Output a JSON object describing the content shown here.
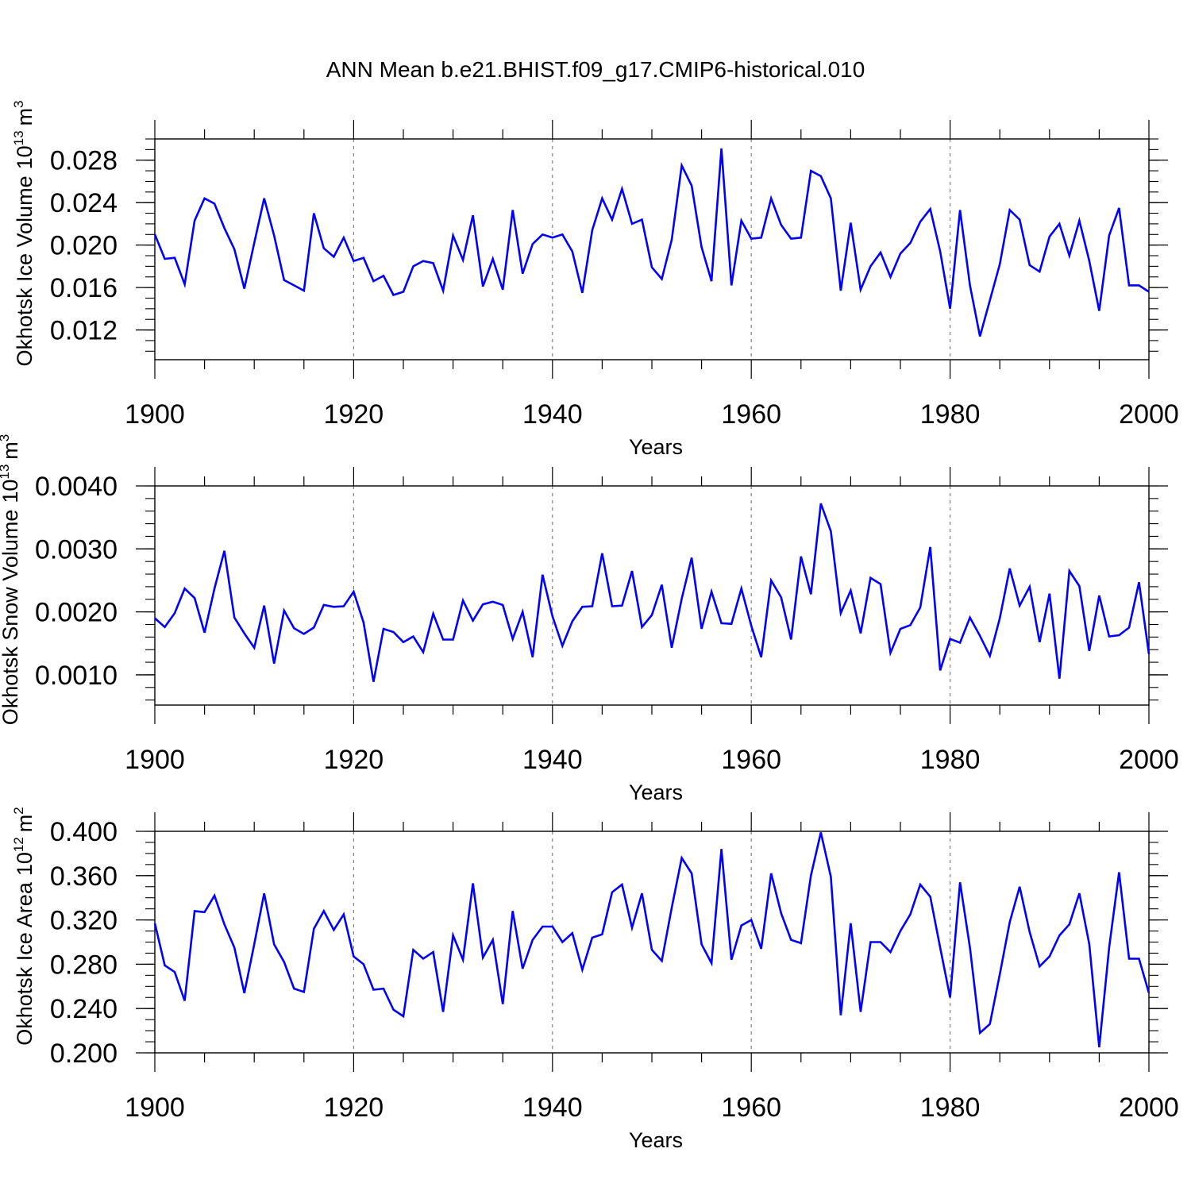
{
  "title": "ANN Mean b.e21.BHIST.f09_g17.CMIP6-historical.010",
  "colors": {
    "line": "#0000ff",
    "axis": "#000000",
    "grid": "#808080"
  },
  "chart_data": [
    {
      "type": "line",
      "ylabel": "Okhotsk Ice Volume",
      "units_base": "10",
      "units_exp": "13",
      "units_unit": "m",
      "units_unit_exp": "3",
      "xlabel": "Years",
      "xlim": [
        1900,
        2000
      ],
      "ylim": [
        0.0092,
        0.03
      ],
      "yticks": [
        0.012,
        0.016,
        0.02,
        0.024,
        0.028
      ],
      "yticklabels": [
        "0.012",
        "0.016",
        "0.020",
        "0.024",
        "0.028"
      ],
      "yminor": 0.001,
      "xticks": [
        1900,
        1920,
        1940,
        1960,
        1980,
        2000
      ],
      "xticklabels": [
        "1900",
        "1920",
        "1940",
        "1960",
        "1980",
        "2000"
      ],
      "grid_x": [
        1920,
        1940,
        1960,
        1980
      ],
      "x_start": 1900,
      "values": [
        0.021,
        0.0187,
        0.0188,
        0.0163,
        0.0223,
        0.0244,
        0.0239,
        0.0216,
        0.0196,
        0.0159,
        0.0202,
        0.0244,
        0.0209,
        0.0167,
        0.0162,
        0.0157,
        0.023,
        0.0197,
        0.0189,
        0.0207,
        0.0185,
        0.0188,
        0.0166,
        0.0171,
        0.0153,
        0.0156,
        0.018,
        0.0185,
        0.0183,
        0.0157,
        0.0209,
        0.0186,
        0.0228,
        0.0161,
        0.0187,
        0.0158,
        0.0233,
        0.0173,
        0.0201,
        0.021,
        0.0207,
        0.021,
        0.0194,
        0.0155,
        0.0214,
        0.0244,
        0.0224,
        0.0253,
        0.022,
        0.0224,
        0.0179,
        0.0168,
        0.0205,
        0.0275,
        0.0256,
        0.0198,
        0.0166,
        0.0291,
        0.0162,
        0.0223,
        0.0206,
        0.0207,
        0.0244,
        0.0219,
        0.0206,
        0.0207,
        0.027,
        0.0265,
        0.0244,
        0.0157,
        0.0221,
        0.0158,
        0.018,
        0.0193,
        0.017,
        0.0192,
        0.0202,
        0.0222,
        0.0234,
        0.0194,
        0.014,
        0.0233,
        0.0162,
        0.0114,
        0.0148,
        0.0182,
        0.0233,
        0.0224,
        0.0181,
        0.0175,
        0.0208,
        0.022,
        0.019,
        0.0223,
        0.0185,
        0.0138,
        0.0209,
        0.0235,
        0.0162,
        0.0162,
        0.0156
      ]
    },
    {
      "type": "line",
      "ylabel": "Okhotsk Snow Volume",
      "units_base": "10",
      "units_exp": "13",
      "units_unit": "m",
      "units_unit_exp": "3",
      "xlabel": "Years",
      "xlim": [
        1900,
        2000
      ],
      "ylim": [
        0.00052,
        0.004
      ],
      "yticks": [
        0.001,
        0.002,
        0.003,
        0.004
      ],
      "yticklabels": [
        "0.0010",
        "0.0020",
        "0.0030",
        "0.0040"
      ],
      "yminor": 0.0002,
      "xticks": [
        1900,
        1920,
        1940,
        1960,
        1980,
        2000
      ],
      "xticklabels": [
        "1900",
        "1920",
        "1940",
        "1960",
        "1980",
        "2000"
      ],
      "grid_x": [
        1920,
        1940,
        1960,
        1980
      ],
      "x_start": 1900,
      "values": [
        0.0019,
        0.00176,
        0.00198,
        0.00237,
        0.00222,
        0.00167,
        0.00237,
        0.00297,
        0.00191,
        0.00166,
        0.00143,
        0.0021,
        0.00118,
        0.00202,
        0.00174,
        0.00165,
        0.00175,
        0.00211,
        0.00208,
        0.00209,
        0.00232,
        0.00183,
        0.00089,
        0.00173,
        0.00168,
        0.00152,
        0.00161,
        0.00136,
        0.00197,
        0.00156,
        0.00156,
        0.00218,
        0.00186,
        0.00212,
        0.00216,
        0.00211,
        0.00157,
        0.002,
        0.00128,
        0.00259,
        0.00193,
        0.00146,
        0.00185,
        0.00208,
        0.00209,
        0.00293,
        0.00209,
        0.0021,
        0.00265,
        0.00176,
        0.00195,
        0.00243,
        0.00143,
        0.00221,
        0.00286,
        0.00173,
        0.00232,
        0.00182,
        0.00181,
        0.00237,
        0.00178,
        0.00128,
        0.0025,
        0.00223,
        0.00156,
        0.00288,
        0.00228,
        0.00372,
        0.00328,
        0.00198,
        0.00234,
        0.00166,
        0.00254,
        0.00244,
        0.00135,
        0.00173,
        0.00179,
        0.00207,
        0.00303,
        0.00107,
        0.00157,
        0.00151,
        0.00191,
        0.00162,
        0.0013,
        0.0019,
        0.00269,
        0.0021,
        0.0024,
        0.00152,
        0.00229,
        0.00094,
        0.00265,
        0.00241,
        0.00138,
        0.00226,
        0.00161,
        0.00163,
        0.00175,
        0.00247,
        0.00133
      ]
    },
    {
      "type": "line",
      "ylabel": "Okhotsk Ice Area",
      "units_base": "10",
      "units_exp": "12",
      "units_unit": "m",
      "units_unit_exp": "2",
      "xlabel": "Years",
      "xlim": [
        1900,
        2000
      ],
      "ylim": [
        0.2,
        0.4
      ],
      "yticks": [
        0.2,
        0.24,
        0.28,
        0.32,
        0.36,
        0.4
      ],
      "yticklabels": [
        "0.200",
        "0.240",
        "0.280",
        "0.320",
        "0.360",
        "0.400"
      ],
      "yminor": 0.01,
      "xticks": [
        1900,
        1920,
        1940,
        1960,
        1980,
        2000
      ],
      "xticklabels": [
        "1900",
        "1920",
        "1940",
        "1960",
        "1980",
        "2000"
      ],
      "grid_x": [
        1920,
        1940,
        1960,
        1980
      ],
      "x_start": 1900,
      "values": [
        0.317,
        0.279,
        0.273,
        0.247,
        0.328,
        0.327,
        0.342,
        0.316,
        0.295,
        0.254,
        0.298,
        0.344,
        0.298,
        0.282,
        0.258,
        0.255,
        0.312,
        0.328,
        0.311,
        0.325,
        0.287,
        0.28,
        0.257,
        0.258,
        0.239,
        0.233,
        0.293,
        0.285,
        0.291,
        0.237,
        0.306,
        0.284,
        0.353,
        0.286,
        0.302,
        0.244,
        0.328,
        0.276,
        0.302,
        0.314,
        0.314,
        0.3,
        0.308,
        0.275,
        0.304,
        0.307,
        0.345,
        0.352,
        0.313,
        0.344,
        0.293,
        0.283,
        0.331,
        0.376,
        0.362,
        0.298,
        0.281,
        0.384,
        0.284,
        0.315,
        0.32,
        0.294,
        0.362,
        0.326,
        0.302,
        0.299,
        0.36,
        0.399,
        0.359,
        0.234,
        0.317,
        0.237,
        0.3,
        0.3,
        0.291,
        0.31,
        0.325,
        0.352,
        0.341,
        0.295,
        0.25,
        0.354,
        0.295,
        0.218,
        0.226,
        0.271,
        0.318,
        0.35,
        0.309,
        0.278,
        0.287,
        0.306,
        0.316,
        0.344,
        0.298,
        0.205,
        0.295,
        0.363,
        0.285,
        0.285,
        0.254
      ]
    }
  ]
}
